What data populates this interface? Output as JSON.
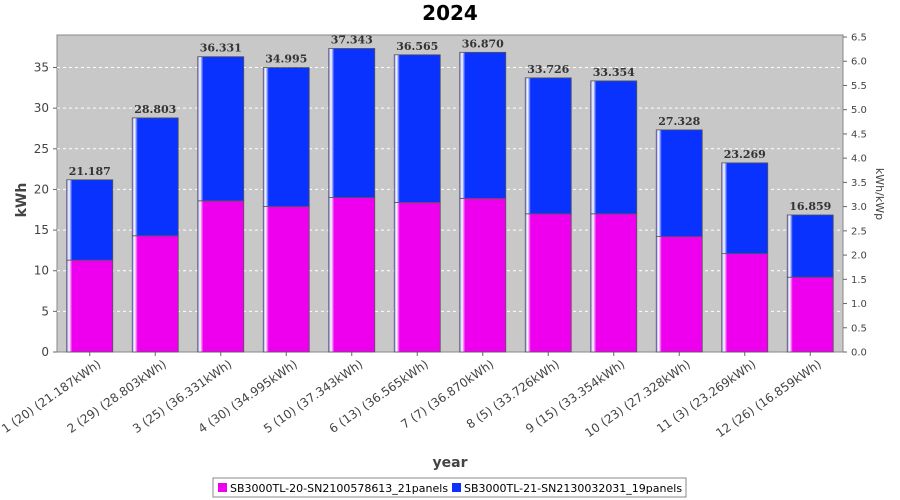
{
  "chart_data": {
    "type": "bar",
    "stacked": true,
    "title": "2024",
    "xlabel": "year",
    "ylabel": "kWh",
    "y2label": "kWh/kWp",
    "ylim": [
      0,
      39
    ],
    "yticks": [
      0,
      5,
      10,
      15,
      20,
      25,
      30,
      35
    ],
    "y2ticks": [
      "0.0",
      "0.5",
      "1.0",
      "1.5",
      "2.0",
      "2.5",
      "3.0",
      "3.5",
      "4.0",
      "4.5",
      "5.0",
      "5.5",
      "6.0",
      "6.5"
    ],
    "grid": true,
    "legend_position": "bottom",
    "categories": [
      "1 (20)  (21.187kWh)",
      "2 (29)  (28.803kWh)",
      "3 (25)  (36.331kWh)",
      "4 (30)  (34.995kWh)",
      "5 (10)  (37.343kWh)",
      "6 (13)  (36.565kWh)",
      "7 (7)  (36.870kWh)",
      "8 (5)  (33.726kWh)",
      "9 (15)  (33.354kWh)",
      "10 (23)  (27.328kWh)",
      "11 (3)  (23.269kWh)",
      "12 (26)  (16.859kWh)"
    ],
    "series": [
      {
        "name": "SB3000TL-20-SN2100578613_21panels",
        "color": "#ee00ee",
        "values": [
          11.3,
          14.3,
          18.6,
          17.9,
          19.0,
          18.4,
          18.9,
          17.0,
          17.0,
          14.2,
          12.1,
          9.2
        ]
      },
      {
        "name": "SB3000TL-21-SN2130032031_19panels",
        "color": "#0a32ff",
        "values": [
          9.887,
          14.503,
          17.731,
          17.095,
          18.343,
          18.165,
          17.97,
          16.726,
          16.354,
          13.128,
          11.169,
          7.659
        ]
      }
    ],
    "totals": [
      "21.187",
      "28.803",
      "36.331",
      "34.995",
      "37.343",
      "36.565",
      "36.870",
      "33.726",
      "33.354",
      "27.328",
      "23.269",
      "16.859"
    ]
  }
}
